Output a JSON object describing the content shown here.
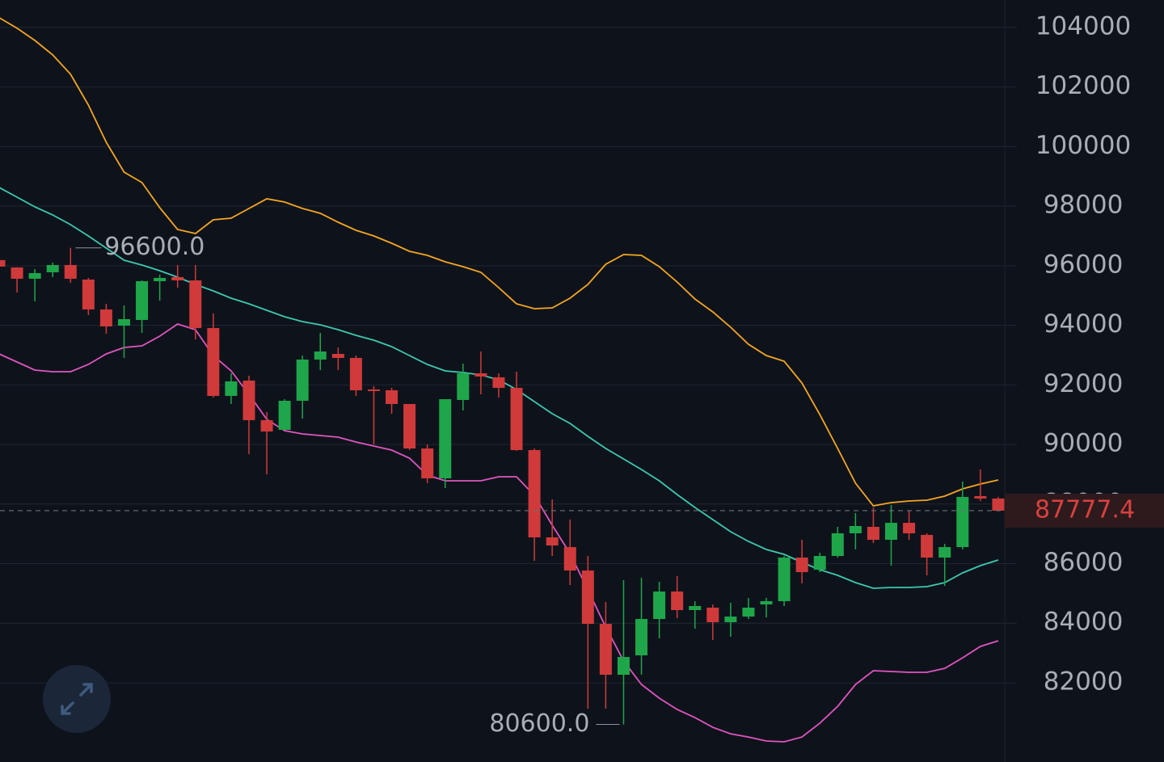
{
  "chart_data": {
    "type": "candlestick",
    "categories": [
      null,
      null,
      null,
      null,
      null,
      null,
      null,
      null,
      null,
      null,
      null,
      null,
      null,
      null,
      null,
      null,
      null,
      null,
      null,
      null,
      null,
      null,
      null,
      null,
      null,
      null,
      null,
      null,
      null,
      null,
      null,
      null,
      null,
      null,
      null,
      null,
      null,
      null,
      null,
      null,
      null,
      null,
      null,
      null,
      null,
      null,
      null,
      null,
      null,
      null,
      null,
      null,
      null,
      null,
      null,
      null,
      null
    ],
    "open": [
      96188,
      95942,
      95563,
      95780,
      96024,
      95535,
      94532,
      93989,
      94179,
      95481,
      95617,
      95508,
      93908,
      91629,
      92144,
      90815,
      90490,
      91466,
      92850,
      93039,
      92904,
      91846,
      91819,
      91358,
      89865,
      88862,
      91493,
      92388,
      92253,
      91900,
      89811,
      86881,
      86555,
      85768,
      83978,
      82269,
      82920,
      84141,
      85063,
      84440,
      84522,
      84033,
      84222,
      84630,
      84739,
      86203,
      85795,
      86257,
      87017,
      87234,
      86800,
      87369,
      86963,
      86203,
      86555,
      88265,
      88184
    ],
    "high": [
      96200,
      95950,
      95888,
      96105,
      96600,
      95590,
      94722,
      94667,
      95508,
      95698,
      96024,
      96024,
      94396,
      92388,
      92307,
      91086,
      91520,
      92985,
      93745,
      93256,
      92985,
      91955,
      91900,
      91358,
      90001,
      91520,
      92714,
      93121,
      92388,
      92443,
      89865,
      88156,
      87478,
      86257,
      84711,
      85443,
      85524,
      85389,
      85578,
      84739,
      84630,
      84684,
      84847,
      84847,
      86257,
      86800,
      86365,
      87234,
      87695,
      87885,
      87966,
      87776,
      87017,
      86664,
      88753,
      89160,
      88238
    ],
    "low": [
      95950,
      95101,
      94803,
      95617,
      95427,
      94342,
      93718,
      92904,
      93745,
      94830,
      95264,
      93528,
      91575,
      91358,
      89675,
      88997,
      90490,
      90869,
      92497,
      92497,
      91629,
      90001,
      91032,
      89811,
      88699,
      88536,
      91140,
      91683,
      91575,
      89784,
      86094,
      86257,
      85280,
      81130,
      81130,
      80600,
      82269,
      83490,
      84168,
      83816,
      83436,
      83544,
      84141,
      84195,
      84576,
      85335,
      85714,
      86203,
      86474,
      86691,
      85931,
      86800,
      85606,
      85253,
      86474,
      88102,
      87777.4
    ],
    "close": [
      95971,
      95563,
      95752,
      96024,
      95563,
      94532,
      93962,
      94206,
      95481,
      95590,
      95508,
      93908,
      91629,
      92117,
      90815,
      90435,
      91466,
      92850,
      93121,
      92904,
      91819,
      91792,
      91358,
      89865,
      88862,
      91520,
      92388,
      92280,
      91900,
      89811,
      86881,
      86610,
      85768,
      83978,
      82269,
      82866,
      84141,
      85063,
      84440,
      84576,
      84033,
      84222,
      84522,
      84739,
      86203,
      85714,
      86257,
      87017,
      87261,
      86800,
      87369,
      87017,
      86203,
      86555,
      88238,
      88184,
      87777.4
    ],
    "up_color": "#1fa64a",
    "down_color": "#d03a3a",
    "bands": [
      {
        "color": "#f5a623",
        "values": [
          104325,
          103972,
          103565,
          103077,
          102426,
          101395,
          100147,
          99143,
          98791,
          97950,
          97217,
          97081,
          97543,
          97597,
          97922,
          98248,
          98139,
          97922,
          97760,
          97461,
          97190,
          97000,
          96756,
          96485,
          96349,
          96132,
          95969,
          95779,
          95264,
          94721,
          94558,
          94585,
          94911,
          95372,
          96050,
          96376,
          96349,
          95969,
          95454,
          94884,
          94450,
          93934,
          93365,
          92985,
          92795,
          92062,
          91004,
          89865,
          88698,
          87939,
          88047,
          88101,
          88129,
          88264,
          88508,
          88671,
          88807
        ]
      },
      {
        "color": "#3fc8b0",
        "values": [
          98628,
          98302,
          97977,
          97705,
          97380,
          97000,
          96593,
          96186,
          96023,
          95833,
          95616,
          95372,
          95155,
          94911,
          94721,
          94504,
          94287,
          94124,
          94016,
          93853,
          93663,
          93500,
          93283,
          92985,
          92686,
          92469,
          92415,
          92334,
          92171,
          91845,
          91438,
          91031,
          90706,
          90272,
          89865,
          89512,
          89159,
          88780,
          88318,
          87884,
          87477,
          87070,
          86745,
          86474,
          86311,
          86040,
          85795,
          85605,
          85361,
          85171,
          85198,
          85198,
          85226,
          85361,
          85687,
          85931,
          86121
        ]
      },
      {
        "color": "#e055c0",
        "values": [
          93039,
          92768,
          92496,
          92442,
          92442,
          92686,
          93039,
          93256,
          93310,
          93636,
          94043,
          93853,
          92985,
          92469,
          91683,
          90842,
          90462,
          90353,
          90299,
          90245,
          90082,
          89946,
          89811,
          89539,
          88970,
          88780,
          88780,
          88780,
          88915,
          88915,
          88291,
          87287,
          86338,
          85117,
          83869,
          82730,
          81943,
          81482,
          81102,
          80831,
          80505,
          80288,
          80179,
          80044,
          80017,
          80179,
          80641,
          81210,
          81943,
          82404,
          82377,
          82350,
          82350,
          82485,
          82837,
          83218,
          83408
        ]
      }
    ],
    "high_label": {
      "value": 96600,
      "label": "96600.0"
    },
    "low_label": {
      "value": 80600,
      "label": "80600.0"
    },
    "last_price": 87777.4,
    "last_price_color": "#d9413e",
    "ylim": [
      79340,
      104920
    ],
    "yticks": [
      82000,
      84000,
      86000,
      88000,
      90000,
      92000,
      94000,
      96000,
      98000,
      100000,
      102000,
      104000
    ],
    "grid": true
  }
}
